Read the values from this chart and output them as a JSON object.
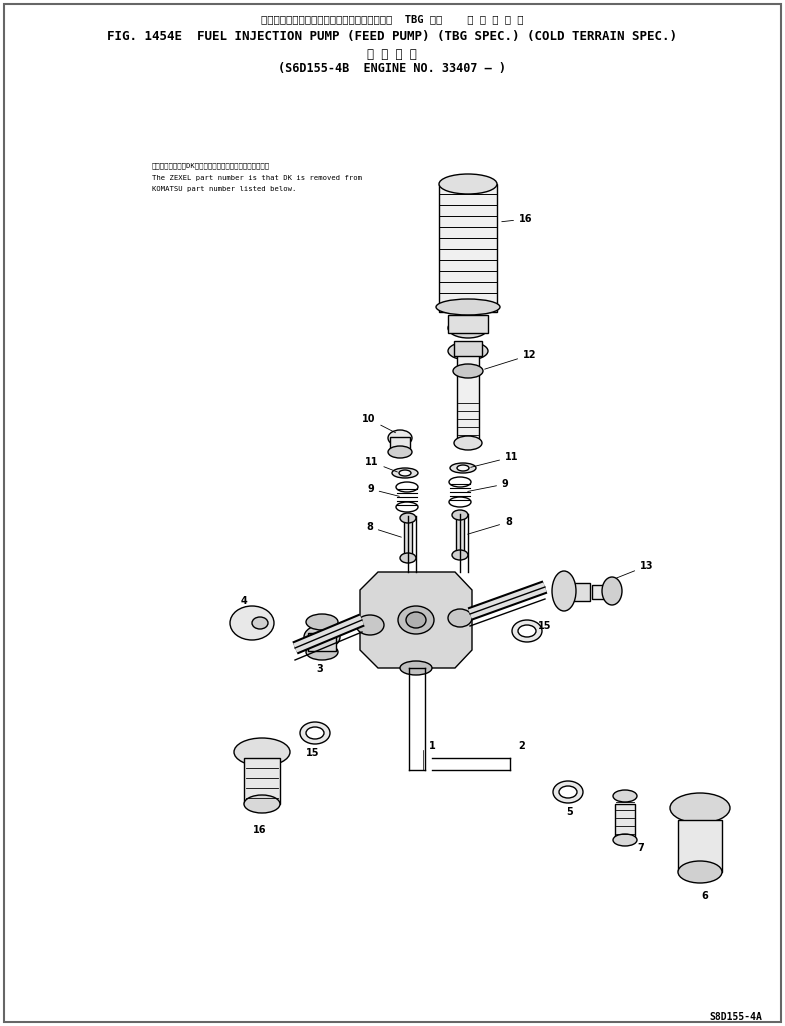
{
  "bg_color": "#ffffff",
  "title_line1": "フェルインジェクションポンプフィードポンプ  TBG 仕様    寒 冷 地 仕 様",
  "title_line2": "FIG. 1454E  FUEL INJECTION PUMP (FEED PUMP) (TBG SPEC.) (COLD TERRAIN SPEC.)",
  "title_line3": "適 用 機 種",
  "title_line4": "(S6D155-4B  ENGINE NO. 33407 – )",
  "watermark": "S8D155-4A",
  "note_jp": "品番のメーカ番号DKを除いたものがゼクセルの品番です。",
  "note_en1": "The ZEXEL part number is that DK is removed from",
  "note_en2": "KOMATSU part number listed below."
}
